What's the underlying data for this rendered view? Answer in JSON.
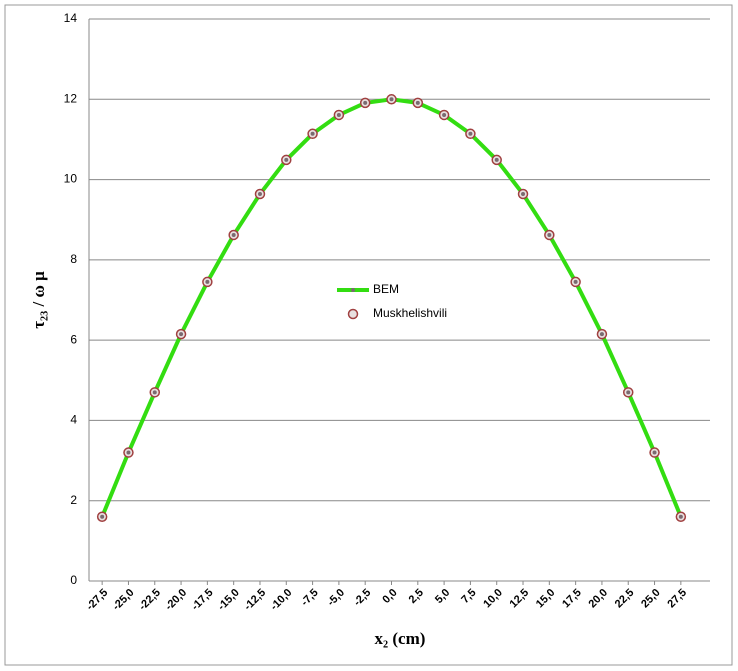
{
  "chart_data": {
    "type": "line",
    "categories": [
      "-27,5",
      "-25,0",
      "-22,5",
      "-20,0",
      "-17,5",
      "-15,0",
      "-12,5",
      "-10,0",
      "-7,5",
      "-5,0",
      "-2,5",
      "0,0",
      "2,5",
      "5,0",
      "7,5",
      "10,0",
      "12,5",
      "15,0",
      "17,5",
      "20,0",
      "22,5",
      "25,0",
      "27,5"
    ],
    "x_label": "x₂ (cm)",
    "y_label": "τ₂₃ / ω μ",
    "ylim": [
      0,
      14
    ],
    "yticks": [
      0,
      2,
      4,
      6,
      8,
      10,
      12,
      14
    ],
    "grid": true,
    "legend": "center",
    "series": [
      {
        "name": "BEM",
        "color": "#33dd11",
        "marker_color": "#7a6a70",
        "values": [
          1.6,
          3.2,
          4.7,
          6.15,
          7.45,
          8.62,
          9.64,
          10.49,
          11.14,
          11.61,
          11.91,
          12.0,
          11.91,
          11.61,
          11.14,
          10.49,
          9.64,
          8.62,
          7.45,
          6.15,
          4.7,
          3.2,
          1.6
        ]
      },
      {
        "name": "Muskhelishvili",
        "color": "#a04040",
        "values": [
          1.6,
          3.2,
          4.7,
          6.15,
          7.45,
          8.62,
          9.64,
          10.49,
          11.14,
          11.61,
          11.91,
          12.0,
          11.91,
          11.61,
          11.14,
          10.49,
          9.64,
          8.62,
          7.45,
          6.15,
          4.7,
          3.2,
          1.6
        ]
      }
    ]
  }
}
